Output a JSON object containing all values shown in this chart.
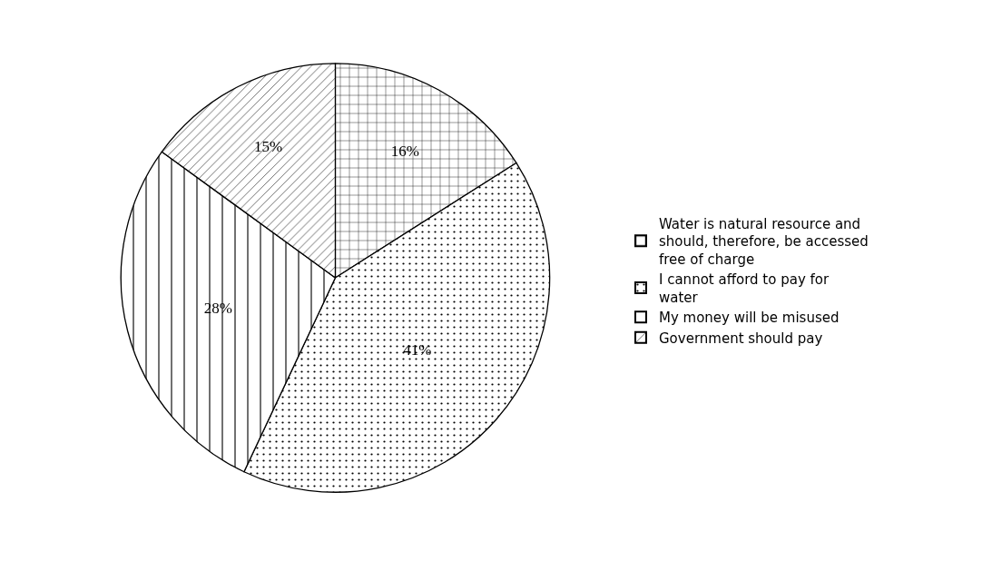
{
  "chart_data": {
    "type": "pie",
    "categories": [
      "Water is natural resource and should, therefore, be accessed free of charge",
      "I cannot afford to pay for water",
      "My money will be misused",
      "Government should pay"
    ],
    "values": [
      16,
      41,
      28,
      15
    ],
    "value_labels": [
      "16%",
      "41%",
      "28%",
      "15%"
    ],
    "colors": [
      "#000000",
      "#000000",
      "#000000",
      "#000000"
    ],
    "legend": "right"
  }
}
